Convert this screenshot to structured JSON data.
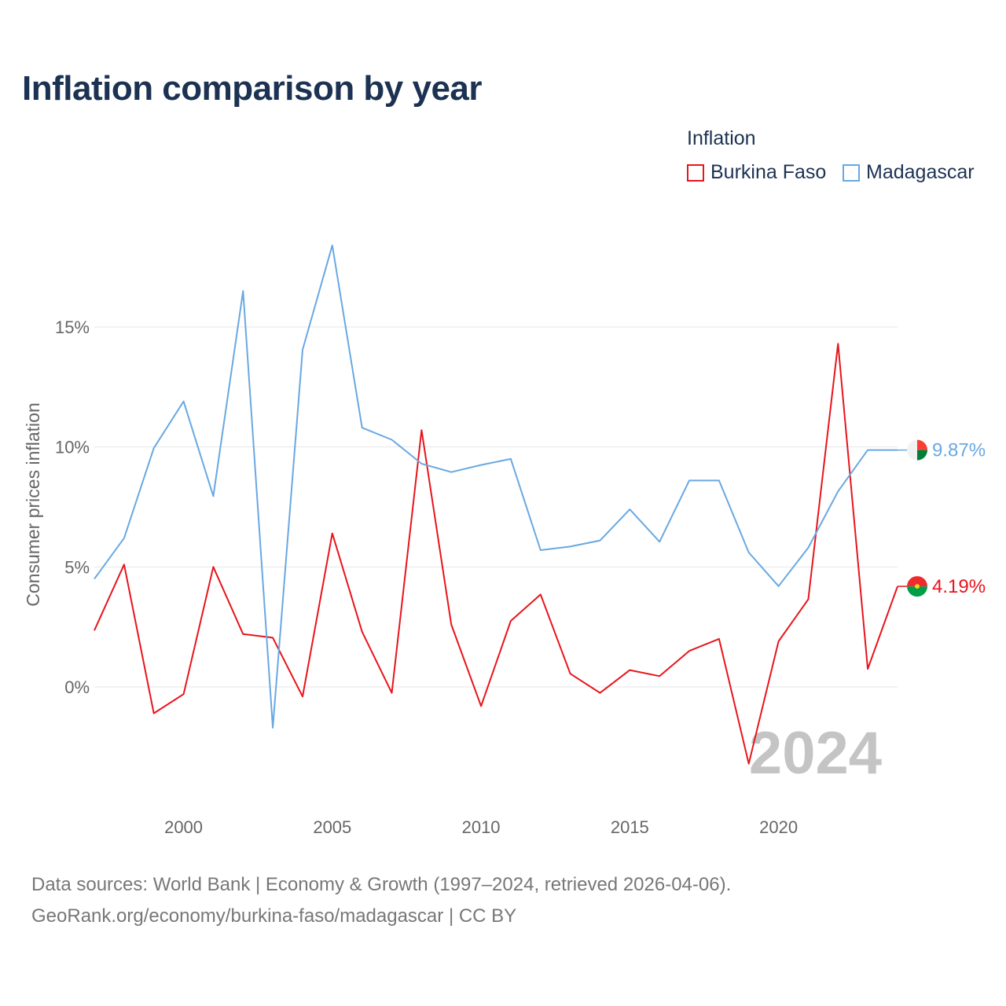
{
  "header": {
    "title": "Inflation comparison by year"
  },
  "legend": {
    "title": "Inflation",
    "items": [
      {
        "label": "Burkina Faso",
        "color": "#e8141b"
      },
      {
        "label": "Madagascar",
        "color": "#69a8e2"
      }
    ]
  },
  "footer": {
    "line1": "Data sources: World Bank | Economy & Growth (1997–2024, retrieved 2026-04-06).",
    "line2": "GeoRank.org/economy/burkina-faso/madagascar | CC BY"
  },
  "chart_data": {
    "type": "line",
    "ylabel": "Consumer prices inflation",
    "xlabel": "",
    "x": [
      1997,
      1998,
      1999,
      2000,
      2001,
      2002,
      2003,
      2004,
      2005,
      2006,
      2007,
      2008,
      2009,
      2010,
      2011,
      2012,
      2013,
      2014,
      2015,
      2016,
      2017,
      2018,
      2019,
      2020,
      2021,
      2022,
      2023,
      2024
    ],
    "xlim": [
      1997,
      2024
    ],
    "ylim": [
      -4.5,
      19
    ],
    "xticks": [
      2000,
      2005,
      2010,
      2015,
      2020
    ],
    "yticks": [
      0,
      5,
      10,
      15
    ],
    "ytick_labels": [
      "0%",
      "5%",
      "10%",
      "15%"
    ],
    "grid": true,
    "watermark_year": "2024",
    "series": [
      {
        "name": "Burkina Faso",
        "color": "#e8141b",
        "values": [
          2.35,
          5.1,
          -1.1,
          -0.3,
          5.0,
          2.2,
          2.05,
          -0.4,
          6.4,
          2.3,
          -0.25,
          10.7,
          2.6,
          -0.8,
          2.75,
          3.85,
          0.55,
          -0.25,
          0.7,
          0.45,
          1.5,
          2.0,
          -3.2,
          1.9,
          3.65,
          14.3,
          0.75,
          4.19
        ],
        "end_label": "4.19%"
      },
      {
        "name": "Madagascar",
        "color": "#69a8e2",
        "values": [
          4.5,
          6.2,
          9.95,
          11.9,
          7.95,
          16.5,
          -1.7,
          14.05,
          18.4,
          10.8,
          10.3,
          9.3,
          8.95,
          9.25,
          9.5,
          5.7,
          5.85,
          6.1,
          7.4,
          6.05,
          8.6,
          8.6,
          5.6,
          4.2,
          5.8,
          8.15,
          9.87,
          9.87
        ],
        "end_label": "9.87%"
      }
    ]
  }
}
